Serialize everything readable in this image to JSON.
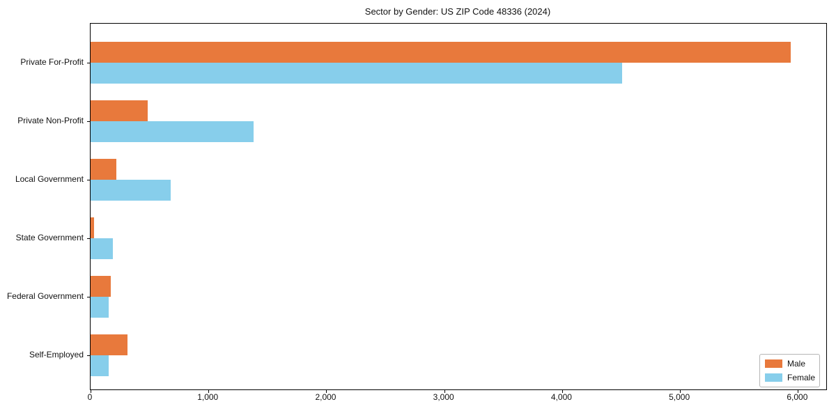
{
  "title": "Sector by Gender: US ZIP Code 48336 (2024)",
  "chart_data": {
    "type": "bar",
    "orientation": "horizontal",
    "title": "Sector by Gender: US ZIP Code 48336 (2024)",
    "categories": [
      "Private For-Profit",
      "Private Non-Profit",
      "Local Government",
      "State Government",
      "Federal Government",
      "Self-Employed"
    ],
    "series": [
      {
        "name": "Male",
        "color": "#e8793c",
        "values": [
          5940,
          485,
          220,
          30,
          170,
          315
        ]
      },
      {
        "name": "Female",
        "color": "#87ceeb",
        "values": [
          4510,
          1380,
          680,
          190,
          155,
          155
        ]
      }
    ],
    "xlabel": "",
    "ylabel": "",
    "xlim": [
      0,
      6240
    ],
    "x_ticks": [
      "0",
      "1,000",
      "2,000",
      "3,000",
      "4,000",
      "5,000",
      "6,000"
    ],
    "x_tick_values": [
      0,
      1000,
      2000,
      3000,
      4000,
      5000,
      6000
    ],
    "legend_position": "lower right",
    "grid": false,
    "colors": {
      "spine": "#000000",
      "background": "#ffffff",
      "text": "#111111"
    }
  }
}
